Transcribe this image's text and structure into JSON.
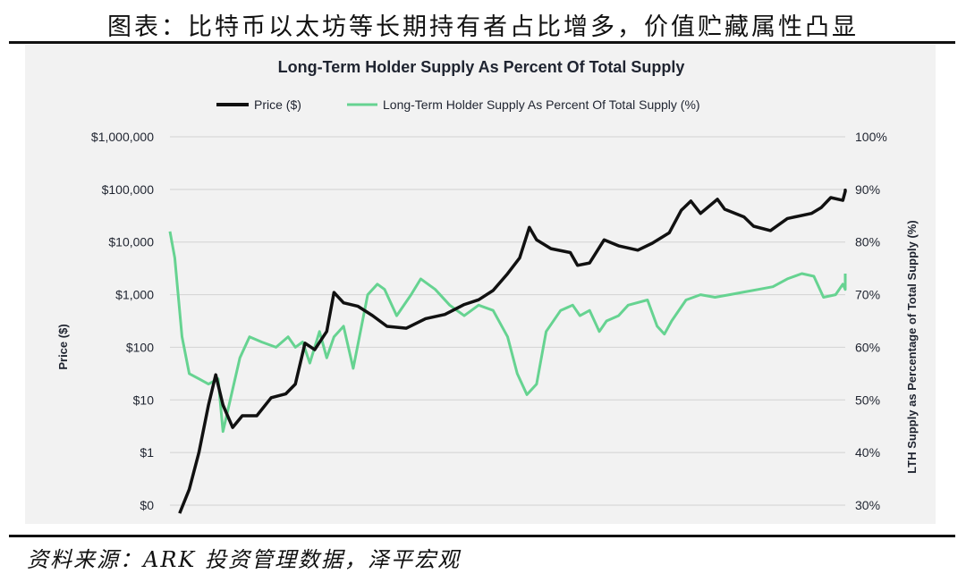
{
  "figure_title": "图表：比特币以太坊等长期持有者占比增多，价值贮藏属性凸显",
  "source": "资料来源：ARK 投资管理数据，泽平宏观",
  "colors": {
    "price": "#111111",
    "lth": "#66d391",
    "grid": "#d3d3d3",
    "background": "#f2f2f2"
  },
  "chart_data": {
    "type": "line",
    "title": "Long-Term Holder Supply As Percent Of Total Supply",
    "legend_position": "top",
    "grid": true,
    "ylabel_left": "Price ($)",
    "ylabel_right": "LTH Supply as Percentage of Total Supply (%)",
    "y_left_scale": "log",
    "y_left_ticks": [
      "$0",
      "$1",
      "$10",
      "$100",
      "$1,000",
      "$10,000",
      "$100,000",
      "$1,000,000"
    ],
    "y_left_values": [
      0.1,
      1,
      10,
      100,
      1000,
      10000,
      100000,
      1000000
    ],
    "y_right_ticks": [
      "30%",
      "40%",
      "50%",
      "60%",
      "70%",
      "80%",
      "90%",
      "100%"
    ],
    "y_right_values": [
      30,
      40,
      50,
      60,
      70,
      80,
      90,
      100
    ],
    "x_range": [
      2010.5,
      2024.5
    ],
    "series": [
      {
        "name": "Price ($)",
        "axis": "left",
        "points": [
          [
            2010.7,
            0.07
          ],
          [
            2010.9,
            0.2
          ],
          [
            2011.1,
            1
          ],
          [
            2011.3,
            8
          ],
          [
            2011.45,
            30
          ],
          [
            2011.6,
            8
          ],
          [
            2011.8,
            3
          ],
          [
            2012.0,
            5
          ],
          [
            2012.3,
            5
          ],
          [
            2012.6,
            11
          ],
          [
            2012.9,
            13
          ],
          [
            2013.1,
            20
          ],
          [
            2013.3,
            120
          ],
          [
            2013.5,
            90
          ],
          [
            2013.75,
            200
          ],
          [
            2013.9,
            1100
          ],
          [
            2014.1,
            700
          ],
          [
            2014.4,
            600
          ],
          [
            2014.7,
            400
          ],
          [
            2015.0,
            250
          ],
          [
            2015.4,
            230
          ],
          [
            2015.8,
            350
          ],
          [
            2016.2,
            420
          ],
          [
            2016.6,
            650
          ],
          [
            2016.9,
            800
          ],
          [
            2017.2,
            1200
          ],
          [
            2017.5,
            2500
          ],
          [
            2017.75,
            5000
          ],
          [
            2017.95,
            19000
          ],
          [
            2018.1,
            11000
          ],
          [
            2018.4,
            7500
          ],
          [
            2018.8,
            6300
          ],
          [
            2018.95,
            3600
          ],
          [
            2019.2,
            4000
          ],
          [
            2019.5,
            11000
          ],
          [
            2019.8,
            8500
          ],
          [
            2020.2,
            7000
          ],
          [
            2020.5,
            9500
          ],
          [
            2020.85,
            15000
          ],
          [
            2021.1,
            40000
          ],
          [
            2021.3,
            60000
          ],
          [
            2021.5,
            35000
          ],
          [
            2021.85,
            65000
          ],
          [
            2022.0,
            42000
          ],
          [
            2022.4,
            30000
          ],
          [
            2022.6,
            20000
          ],
          [
            2022.95,
            16500
          ],
          [
            2023.3,
            28000
          ],
          [
            2023.8,
            35000
          ],
          [
            2024.0,
            45000
          ],
          [
            2024.2,
            70000
          ],
          [
            2024.45,
            62000
          ],
          [
            2024.65,
            92000
          ],
          [
            2024.85,
            97000
          ],
          [
            2025.0,
            96000
          ]
        ]
      },
      {
        "name": "Long-Term Holder Supply As Percent Of Total Supply (%)",
        "axis": "right",
        "points": [
          [
            2010.5,
            82
          ],
          [
            2010.6,
            77
          ],
          [
            2010.75,
            62
          ],
          [
            2010.9,
            55
          ],
          [
            2011.1,
            54
          ],
          [
            2011.3,
            53
          ],
          [
            2011.5,
            54
          ],
          [
            2011.6,
            44
          ],
          [
            2011.8,
            52
          ],
          [
            2011.95,
            58
          ],
          [
            2012.15,
            62
          ],
          [
            2012.4,
            61
          ],
          [
            2012.7,
            60
          ],
          [
            2012.95,
            62
          ],
          [
            2013.1,
            60
          ],
          [
            2013.25,
            61
          ],
          [
            2013.4,
            57
          ],
          [
            2013.6,
            63
          ],
          [
            2013.75,
            58
          ],
          [
            2013.9,
            62
          ],
          [
            2014.1,
            64
          ],
          [
            2014.3,
            56
          ],
          [
            2014.6,
            70
          ],
          [
            2014.8,
            72
          ],
          [
            2014.95,
            71
          ],
          [
            2015.2,
            66
          ],
          [
            2015.5,
            70
          ],
          [
            2015.7,
            73
          ],
          [
            2016.0,
            71
          ],
          [
            2016.3,
            68
          ],
          [
            2016.6,
            66
          ],
          [
            2016.9,
            68
          ],
          [
            2017.2,
            67
          ],
          [
            2017.5,
            62
          ],
          [
            2017.7,
            55
          ],
          [
            2017.9,
            51
          ],
          [
            2018.1,
            53
          ],
          [
            2018.3,
            63
          ],
          [
            2018.6,
            67
          ],
          [
            2018.85,
            68
          ],
          [
            2019.0,
            66
          ],
          [
            2019.2,
            67
          ],
          [
            2019.4,
            63
          ],
          [
            2019.55,
            65
          ],
          [
            2019.8,
            66
          ],
          [
            2020.0,
            68
          ],
          [
            2020.4,
            69
          ],
          [
            2020.6,
            64
          ],
          [
            2020.75,
            62.5
          ],
          [
            2020.9,
            65
          ],
          [
            2021.2,
            69
          ],
          [
            2021.5,
            70
          ],
          [
            2021.8,
            69.5
          ],
          [
            2022.1,
            70
          ],
          [
            2022.4,
            70.5
          ],
          [
            2022.7,
            71
          ],
          [
            2023.0,
            71.5
          ],
          [
            2023.3,
            73
          ],
          [
            2023.6,
            74
          ],
          [
            2023.85,
            73.5
          ],
          [
            2024.05,
            69.5
          ],
          [
            2024.3,
            70
          ],
          [
            2024.45,
            72
          ],
          [
            2024.65,
            71
          ],
          [
            2024.8,
            71.5
          ],
          [
            2025.0,
            74
          ]
        ]
      }
    ]
  }
}
